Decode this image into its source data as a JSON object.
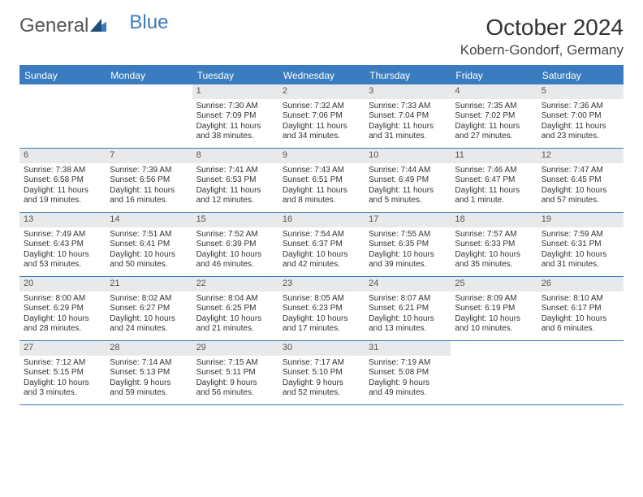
{
  "logo": {
    "part1": "General",
    "part2": "Blue"
  },
  "title": "October 2024",
  "location": "Kobern-Gondorf, Germany",
  "colors": {
    "brand_blue": "#3b7bbf",
    "header_bg": "#3b7bbf",
    "daynum_bg": "#e8e9ea",
    "text": "#333333",
    "bg": "#ffffff"
  },
  "day_headers": [
    "Sunday",
    "Monday",
    "Tuesday",
    "Wednesday",
    "Thursday",
    "Friday",
    "Saturday"
  ],
  "weeks": [
    [
      {
        "empty": true
      },
      {
        "empty": true
      },
      {
        "day": "1",
        "sunrise": "Sunrise: 7:30 AM",
        "sunset": "Sunset: 7:09 PM",
        "daylight1": "Daylight: 11 hours",
        "daylight2": "and 38 minutes."
      },
      {
        "day": "2",
        "sunrise": "Sunrise: 7:32 AM",
        "sunset": "Sunset: 7:06 PM",
        "daylight1": "Daylight: 11 hours",
        "daylight2": "and 34 minutes."
      },
      {
        "day": "3",
        "sunrise": "Sunrise: 7:33 AM",
        "sunset": "Sunset: 7:04 PM",
        "daylight1": "Daylight: 11 hours",
        "daylight2": "and 31 minutes."
      },
      {
        "day": "4",
        "sunrise": "Sunrise: 7:35 AM",
        "sunset": "Sunset: 7:02 PM",
        "daylight1": "Daylight: 11 hours",
        "daylight2": "and 27 minutes."
      },
      {
        "day": "5",
        "sunrise": "Sunrise: 7:36 AM",
        "sunset": "Sunset: 7:00 PM",
        "daylight1": "Daylight: 11 hours",
        "daylight2": "and 23 minutes."
      }
    ],
    [
      {
        "day": "6",
        "sunrise": "Sunrise: 7:38 AM",
        "sunset": "Sunset: 6:58 PM",
        "daylight1": "Daylight: 11 hours",
        "daylight2": "and 19 minutes."
      },
      {
        "day": "7",
        "sunrise": "Sunrise: 7:39 AM",
        "sunset": "Sunset: 6:56 PM",
        "daylight1": "Daylight: 11 hours",
        "daylight2": "and 16 minutes."
      },
      {
        "day": "8",
        "sunrise": "Sunrise: 7:41 AM",
        "sunset": "Sunset: 6:53 PM",
        "daylight1": "Daylight: 11 hours",
        "daylight2": "and 12 minutes."
      },
      {
        "day": "9",
        "sunrise": "Sunrise: 7:43 AM",
        "sunset": "Sunset: 6:51 PM",
        "daylight1": "Daylight: 11 hours",
        "daylight2": "and 8 minutes."
      },
      {
        "day": "10",
        "sunrise": "Sunrise: 7:44 AM",
        "sunset": "Sunset: 6:49 PM",
        "daylight1": "Daylight: 11 hours",
        "daylight2": "and 5 minutes."
      },
      {
        "day": "11",
        "sunrise": "Sunrise: 7:46 AM",
        "sunset": "Sunset: 6:47 PM",
        "daylight1": "Daylight: 11 hours",
        "daylight2": "and 1 minute."
      },
      {
        "day": "12",
        "sunrise": "Sunrise: 7:47 AM",
        "sunset": "Sunset: 6:45 PM",
        "daylight1": "Daylight: 10 hours",
        "daylight2": "and 57 minutes."
      }
    ],
    [
      {
        "day": "13",
        "sunrise": "Sunrise: 7:49 AM",
        "sunset": "Sunset: 6:43 PM",
        "daylight1": "Daylight: 10 hours",
        "daylight2": "and 53 minutes."
      },
      {
        "day": "14",
        "sunrise": "Sunrise: 7:51 AM",
        "sunset": "Sunset: 6:41 PM",
        "daylight1": "Daylight: 10 hours",
        "daylight2": "and 50 minutes."
      },
      {
        "day": "15",
        "sunrise": "Sunrise: 7:52 AM",
        "sunset": "Sunset: 6:39 PM",
        "daylight1": "Daylight: 10 hours",
        "daylight2": "and 46 minutes."
      },
      {
        "day": "16",
        "sunrise": "Sunrise: 7:54 AM",
        "sunset": "Sunset: 6:37 PM",
        "daylight1": "Daylight: 10 hours",
        "daylight2": "and 42 minutes."
      },
      {
        "day": "17",
        "sunrise": "Sunrise: 7:55 AM",
        "sunset": "Sunset: 6:35 PM",
        "daylight1": "Daylight: 10 hours",
        "daylight2": "and 39 minutes."
      },
      {
        "day": "18",
        "sunrise": "Sunrise: 7:57 AM",
        "sunset": "Sunset: 6:33 PM",
        "daylight1": "Daylight: 10 hours",
        "daylight2": "and 35 minutes."
      },
      {
        "day": "19",
        "sunrise": "Sunrise: 7:59 AM",
        "sunset": "Sunset: 6:31 PM",
        "daylight1": "Daylight: 10 hours",
        "daylight2": "and 31 minutes."
      }
    ],
    [
      {
        "day": "20",
        "sunrise": "Sunrise: 8:00 AM",
        "sunset": "Sunset: 6:29 PM",
        "daylight1": "Daylight: 10 hours",
        "daylight2": "and 28 minutes."
      },
      {
        "day": "21",
        "sunrise": "Sunrise: 8:02 AM",
        "sunset": "Sunset: 6:27 PM",
        "daylight1": "Daylight: 10 hours",
        "daylight2": "and 24 minutes."
      },
      {
        "day": "22",
        "sunrise": "Sunrise: 8:04 AM",
        "sunset": "Sunset: 6:25 PM",
        "daylight1": "Daylight: 10 hours",
        "daylight2": "and 21 minutes."
      },
      {
        "day": "23",
        "sunrise": "Sunrise: 8:05 AM",
        "sunset": "Sunset: 6:23 PM",
        "daylight1": "Daylight: 10 hours",
        "daylight2": "and 17 minutes."
      },
      {
        "day": "24",
        "sunrise": "Sunrise: 8:07 AM",
        "sunset": "Sunset: 6:21 PM",
        "daylight1": "Daylight: 10 hours",
        "daylight2": "and 13 minutes."
      },
      {
        "day": "25",
        "sunrise": "Sunrise: 8:09 AM",
        "sunset": "Sunset: 6:19 PM",
        "daylight1": "Daylight: 10 hours",
        "daylight2": "and 10 minutes."
      },
      {
        "day": "26",
        "sunrise": "Sunrise: 8:10 AM",
        "sunset": "Sunset: 6:17 PM",
        "daylight1": "Daylight: 10 hours",
        "daylight2": "and 6 minutes."
      }
    ],
    [
      {
        "day": "27",
        "sunrise": "Sunrise: 7:12 AM",
        "sunset": "Sunset: 5:15 PM",
        "daylight1": "Daylight: 10 hours",
        "daylight2": "and 3 minutes."
      },
      {
        "day": "28",
        "sunrise": "Sunrise: 7:14 AM",
        "sunset": "Sunset: 5:13 PM",
        "daylight1": "Daylight: 9 hours",
        "daylight2": "and 59 minutes."
      },
      {
        "day": "29",
        "sunrise": "Sunrise: 7:15 AM",
        "sunset": "Sunset: 5:11 PM",
        "daylight1": "Daylight: 9 hours",
        "daylight2": "and 56 minutes."
      },
      {
        "day": "30",
        "sunrise": "Sunrise: 7:17 AM",
        "sunset": "Sunset: 5:10 PM",
        "daylight1": "Daylight: 9 hours",
        "daylight2": "and 52 minutes."
      },
      {
        "day": "31",
        "sunrise": "Sunrise: 7:19 AM",
        "sunset": "Sunset: 5:08 PM",
        "daylight1": "Daylight: 9 hours",
        "daylight2": "and 49 minutes."
      },
      {
        "empty": true
      },
      {
        "empty": true
      }
    ]
  ]
}
